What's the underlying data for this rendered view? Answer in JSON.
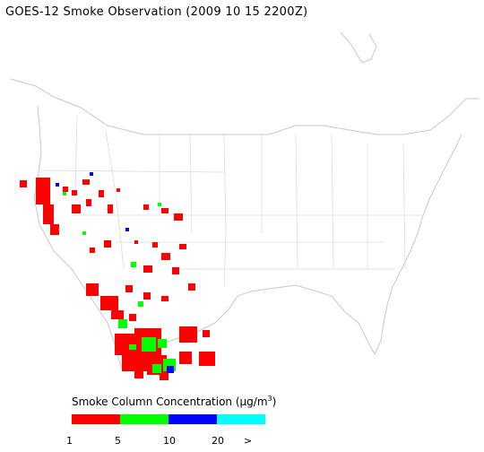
{
  "title": "GOES-12 Smoke Observation (2009 10 15  2200Z)",
  "legend": {
    "title_prefix": "Smoke Column Concentration (",
    "title_unit": "μg/m",
    "title_sup": "3",
    "title_suffix": ")",
    "bins": [
      {
        "label": "1",
        "color": "#ff0000"
      },
      {
        "label": "5",
        "color": "#00ff00"
      },
      {
        "label": "10",
        "color": "#0000ff"
      },
      {
        "label": "20",
        "color": "#00ffff"
      }
    ],
    "overflow_label": ">"
  },
  "colors": {
    "low": "#ff0000",
    "medium": "#00ff00",
    "high": "#0000ff",
    "very_high": "#00ffff",
    "boundary": "#c8c8c8"
  }
}
